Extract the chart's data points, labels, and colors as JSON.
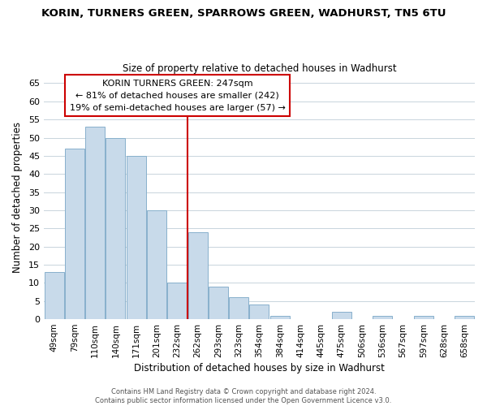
{
  "title": "KORIN, TURNERS GREEN, SPARROWS GREEN, WADHURST, TN5 6TU",
  "subtitle": "Size of property relative to detached houses in Wadhurst",
  "xlabel": "Distribution of detached houses by size in Wadhurst",
  "ylabel": "Number of detached properties",
  "bar_color": "#c8daea",
  "bar_edgecolor": "#88b0cc",
  "categories": [
    "49sqm",
    "79sqm",
    "110sqm",
    "140sqm",
    "171sqm",
    "201sqm",
    "232sqm",
    "262sqm",
    "293sqm",
    "323sqm",
    "354sqm",
    "384sqm",
    "414sqm",
    "445sqm",
    "475sqm",
    "506sqm",
    "536sqm",
    "567sqm",
    "597sqm",
    "628sqm",
    "658sqm"
  ],
  "values": [
    13,
    47,
    53,
    50,
    45,
    30,
    10,
    24,
    9,
    6,
    4,
    1,
    0,
    0,
    2,
    0,
    1,
    0,
    1,
    0,
    1
  ],
  "ylim": [
    0,
    67
  ],
  "yticks": [
    0,
    5,
    10,
    15,
    20,
    25,
    30,
    35,
    40,
    45,
    50,
    55,
    60,
    65
  ],
  "vline_x": 6.5,
  "vline_color": "#cc0000",
  "annotation_title": "KORIN TURNERS GREEN: 247sqm",
  "annotation_line1": "← 81% of detached houses are smaller (242)",
  "annotation_line2": "19% of semi-detached houses are larger (57) →",
  "annotation_box_color": "#ffffff",
  "annotation_box_edgecolor": "#cc0000",
  "footer1": "Contains HM Land Registry data © Crown copyright and database right 2024.",
  "footer2": "Contains public sector information licensed under the Open Government Licence v3.0.",
  "background_color": "#ffffff",
  "grid_color": "#c8d4dc"
}
